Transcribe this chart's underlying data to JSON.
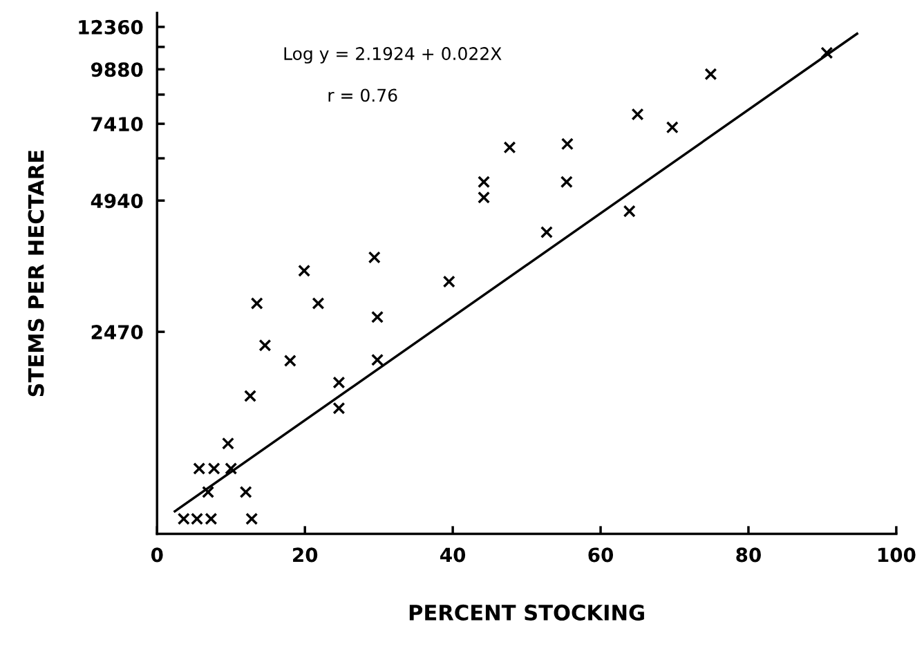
{
  "chart_data": {
    "type": "scatter",
    "xlabel": "PERCENT STOCKING",
    "ylabel": "STEMS PER HECTARE",
    "annotations": [
      "Log y = 2.1924 + 0.022X",
      "r = 0.76"
    ],
    "log": "y",
    "xlim": [
      0,
      100
    ],
    "xticks": [
      0,
      20,
      40,
      60,
      80,
      100
    ],
    "ylim": [
      850,
      13300
    ],
    "yticks": [
      2470,
      4940,
      {
        "value": 6175,
        "label": null
      },
      7410,
      {
        "value": 8645,
        "label": null
      },
      9880,
      {
        "value": 11120,
        "label": null
      },
      12360
    ],
    "grid": false,
    "legend": false,
    "series": [
      {
        "color": "#000000",
        "marker": "cross",
        "x": [
          3.6,
          5.4,
          7.3,
          12.8,
          6.9,
          12.0,
          5.7,
          7.7,
          10.0,
          9.6,
          12.6,
          18.0,
          14.6,
          13.5,
          19.9,
          21.8,
          29.4,
          29.8,
          29.8,
          24.6,
          24.6,
          39.5,
          44.2,
          44.2,
          47.7,
          52.7,
          55.4,
          55.5,
          63.9,
          65.0,
          69.7,
          74.9,
          90.6
        ],
        "values": [
          920,
          920,
          920,
          920,
          1060,
          1060,
          1200,
          1200,
          1200,
          1370,
          1760,
          2120,
          2300,
          2870,
          3410,
          2870,
          3660,
          2670,
          2130,
          1890,
          1650,
          3220,
          5020,
          5450,
          6540,
          4180,
          5450,
          6660,
          4670,
          7790,
          7270,
          9630,
          10780
        ]
      },
      {
        "type": "line",
        "color": "#000000",
        "marker": "none",
        "line_style": "solid",
        "x": [
          2.4,
          94.7
        ],
        "values": [
          957,
          11925
        ]
      }
    ]
  }
}
